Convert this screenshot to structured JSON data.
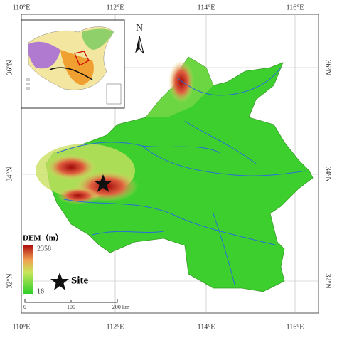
{
  "frame": {
    "top_labels": [
      "110°E",
      "112°E",
      "114°E",
      "116°E"
    ],
    "bottom_labels": [
      "110°E",
      "112°E",
      "114°E",
      "116°E"
    ],
    "left_labels": [
      "36°N",
      "34°N",
      "32°N"
    ],
    "right_labels": [
      "36°N",
      "34°N",
      "32°N"
    ]
  },
  "north_arrow": "N",
  "legend": {
    "title": "DEM（m）",
    "max": "2358",
    "min": "16",
    "site": "Site"
  },
  "scale_bar": [
    "0",
    "100",
    "200 km"
  ]
}
